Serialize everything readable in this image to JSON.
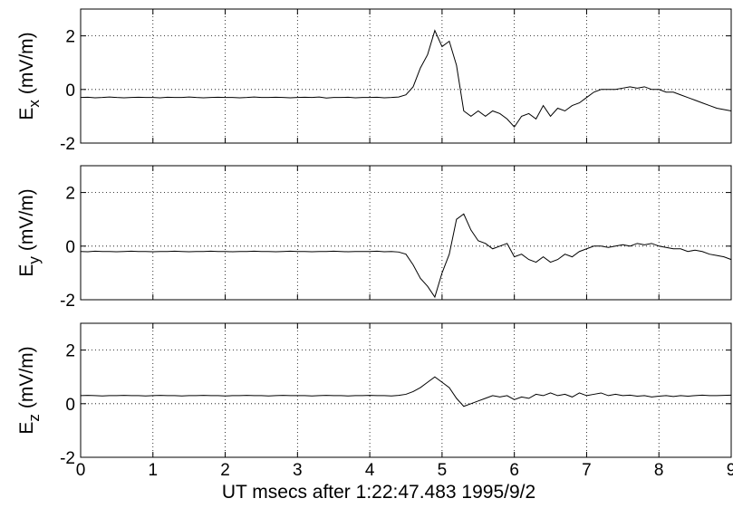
{
  "chart_data": [
    {
      "type": "line",
      "ylabel": {
        "main": "E",
        "sub": "x",
        "unit": "(mV/m)"
      },
      "xlim": [
        0,
        9
      ],
      "xticks": [
        0,
        1,
        2,
        3,
        4,
        5,
        6,
        7,
        8,
        9
      ],
      "ylim": [
        -2,
        3
      ],
      "yticks": [
        -2,
        0,
        2
      ],
      "grid": true,
      "x": [
        0,
        0.1,
        0.2,
        0.3,
        0.4,
        0.5,
        0.6,
        0.7,
        0.8,
        0.9,
        1,
        1.1,
        1.2,
        1.3,
        1.4,
        1.5,
        1.6,
        1.7,
        1.8,
        1.9,
        2,
        2.1,
        2.2,
        2.3,
        2.4,
        2.5,
        2.6,
        2.7,
        2.8,
        2.9,
        3,
        3.1,
        3.2,
        3.3,
        3.4,
        3.5,
        3.6,
        3.7,
        3.8,
        3.9,
        4,
        4.1,
        4.2,
        4.3,
        4.4,
        4.5,
        4.6,
        4.7,
        4.8,
        4.9,
        5,
        5.1,
        5.2,
        5.3,
        5.4,
        5.5,
        5.6,
        5.7,
        5.8,
        5.9,
        6,
        6.1,
        6.2,
        6.3,
        6.4,
        6.5,
        6.6,
        6.7,
        6.8,
        6.9,
        7,
        7.1,
        7.2,
        7.3,
        7.4,
        7.5,
        7.6,
        7.7,
        7.8,
        7.9,
        8,
        8.1,
        8.2,
        8.3,
        8.4,
        8.5,
        8.6,
        8.7,
        8.8,
        8.9,
        9
      ],
      "series": [
        {
          "color": "#000000",
          "values": [
            -0.3,
            -0.29,
            -0.31,
            -0.3,
            -0.28,
            -0.3,
            -0.31,
            -0.3,
            -0.29,
            -0.3,
            -0.3,
            -0.31,
            -0.29,
            -0.3,
            -0.3,
            -0.28,
            -0.3,
            -0.31,
            -0.3,
            -0.29,
            -0.3,
            -0.3,
            -0.31,
            -0.3,
            -0.28,
            -0.3,
            -0.3,
            -0.29,
            -0.3,
            -0.31,
            -0.3,
            -0.29,
            -0.3,
            -0.28,
            -0.32,
            -0.3,
            -0.3,
            -0.29,
            -0.31,
            -0.3,
            -0.3,
            -0.29,
            -0.31,
            -0.3,
            -0.28,
            -0.2,
            0.1,
            0.8,
            1.3,
            2.2,
            1.6,
            1.8,
            0.9,
            -0.8,
            -1.0,
            -0.8,
            -1.0,
            -0.8,
            -0.9,
            -1.1,
            -1.4,
            -1.0,
            -0.9,
            -1.1,
            -0.6,
            -1.0,
            -0.7,
            -0.8,
            -0.6,
            -0.5,
            -0.3,
            -0.1,
            0.0,
            0.0,
            0.0,
            0.05,
            0.1,
            0.05,
            0.1,
            0.0,
            0.0,
            -0.1,
            -0.1,
            -0.2,
            -0.3,
            -0.4,
            -0.5,
            -0.6,
            -0.7,
            -0.75,
            -0.8
          ]
        }
      ]
    },
    {
      "type": "line",
      "ylabel": {
        "main": "E",
        "sub": "y",
        "unit": "(mV/m)"
      },
      "xlim": [
        0,
        9
      ],
      "xticks": [
        0,
        1,
        2,
        3,
        4,
        5,
        6,
        7,
        8,
        9
      ],
      "ylim": [
        -2,
        3
      ],
      "yticks": [
        -2,
        0,
        2
      ],
      "grid": true,
      "x": [
        0,
        0.1,
        0.2,
        0.3,
        0.4,
        0.5,
        0.6,
        0.7,
        0.8,
        0.9,
        1,
        1.1,
        1.2,
        1.3,
        1.4,
        1.5,
        1.6,
        1.7,
        1.8,
        1.9,
        2,
        2.1,
        2.2,
        2.3,
        2.4,
        2.5,
        2.6,
        2.7,
        2.8,
        2.9,
        3,
        3.1,
        3.2,
        3.3,
        3.4,
        3.5,
        3.6,
        3.7,
        3.8,
        3.9,
        4,
        4.1,
        4.2,
        4.3,
        4.4,
        4.5,
        4.6,
        4.7,
        4.8,
        4.9,
        5,
        5.1,
        5.2,
        5.3,
        5.4,
        5.5,
        5.6,
        5.7,
        5.8,
        5.9,
        6,
        6.1,
        6.2,
        6.3,
        6.4,
        6.5,
        6.6,
        6.7,
        6.8,
        6.9,
        7,
        7.1,
        7.2,
        7.3,
        7.4,
        7.5,
        7.6,
        7.7,
        7.8,
        7.9,
        8,
        8.1,
        8.2,
        8.3,
        8.4,
        8.5,
        8.6,
        8.7,
        8.8,
        8.9,
        9
      ],
      "series": [
        {
          "color": "#000000",
          "values": [
            -0.2,
            -0.21,
            -0.19,
            -0.2,
            -0.2,
            -0.21,
            -0.2,
            -0.19,
            -0.2,
            -0.2,
            -0.21,
            -0.2,
            -0.2,
            -0.19,
            -0.2,
            -0.21,
            -0.2,
            -0.2,
            -0.19,
            -0.2,
            -0.2,
            -0.21,
            -0.2,
            -0.2,
            -0.19,
            -0.2,
            -0.2,
            -0.21,
            -0.2,
            -0.19,
            -0.2,
            -0.2,
            -0.21,
            -0.2,
            -0.2,
            -0.19,
            -0.2,
            -0.21,
            -0.2,
            -0.2,
            -0.2,
            -0.19,
            -0.21,
            -0.2,
            -0.22,
            -0.3,
            -0.7,
            -1.2,
            -1.5,
            -1.9,
            -1.0,
            -0.3,
            1.0,
            1.2,
            0.6,
            0.2,
            0.1,
            -0.1,
            0.0,
            0.1,
            -0.4,
            -0.3,
            -0.5,
            -0.6,
            -0.4,
            -0.6,
            -0.5,
            -0.3,
            -0.4,
            -0.2,
            -0.1,
            0.0,
            0.0,
            -0.05,
            0.0,
            0.05,
            0.0,
            0.1,
            0.05,
            0.1,
            0.0,
            -0.05,
            -0.1,
            -0.1,
            -0.2,
            -0.15,
            -0.2,
            -0.3,
            -0.35,
            -0.4,
            -0.5
          ]
        }
      ]
    },
    {
      "type": "line",
      "ylabel": {
        "main": "E",
        "sub": "z",
        "unit": "(mV/m)"
      },
      "xlabel": "UT msecs after 1:22:47.483 1995/9/2",
      "xlim": [
        0,
        9
      ],
      "xticks": [
        0,
        1,
        2,
        3,
        4,
        5,
        6,
        7,
        8,
        9
      ],
      "ylim": [
        -2,
        3
      ],
      "yticks": [
        -2,
        0,
        2
      ],
      "grid": true,
      "x": [
        0,
        0.1,
        0.2,
        0.3,
        0.4,
        0.5,
        0.6,
        0.7,
        0.8,
        0.9,
        1,
        1.1,
        1.2,
        1.3,
        1.4,
        1.5,
        1.6,
        1.7,
        1.8,
        1.9,
        2,
        2.1,
        2.2,
        2.3,
        2.4,
        2.5,
        2.6,
        2.7,
        2.8,
        2.9,
        3,
        3.1,
        3.2,
        3.3,
        3.4,
        3.5,
        3.6,
        3.7,
        3.8,
        3.9,
        4,
        4.1,
        4.2,
        4.3,
        4.4,
        4.5,
        4.6,
        4.7,
        4.8,
        4.9,
        5,
        5.1,
        5.2,
        5.3,
        5.4,
        5.5,
        5.6,
        5.7,
        5.8,
        5.9,
        6,
        6.1,
        6.2,
        6.3,
        6.4,
        6.5,
        6.6,
        6.7,
        6.8,
        6.9,
        7,
        7.1,
        7.2,
        7.3,
        7.4,
        7.5,
        7.6,
        7.7,
        7.8,
        7.9,
        8,
        8.1,
        8.2,
        8.3,
        8.4,
        8.5,
        8.6,
        8.7,
        8.8,
        8.9,
        9
      ],
      "series": [
        {
          "color": "#000000",
          "values": [
            0.3,
            0.31,
            0.3,
            0.29,
            0.3,
            0.3,
            0.31,
            0.3,
            0.3,
            0.29,
            0.3,
            0.31,
            0.3,
            0.3,
            0.29,
            0.3,
            0.3,
            0.31,
            0.3,
            0.3,
            0.29,
            0.3,
            0.3,
            0.31,
            0.3,
            0.3,
            0.29,
            0.3,
            0.31,
            0.3,
            0.3,
            0.3,
            0.29,
            0.3,
            0.31,
            0.3,
            0.3,
            0.29,
            0.3,
            0.3,
            0.31,
            0.3,
            0.3,
            0.29,
            0.31,
            0.35,
            0.45,
            0.6,
            0.8,
            1.0,
            0.8,
            0.6,
            0.2,
            -0.1,
            0.0,
            0.1,
            0.2,
            0.3,
            0.25,
            0.3,
            0.15,
            0.25,
            0.2,
            0.35,
            0.3,
            0.4,
            0.3,
            0.35,
            0.25,
            0.4,
            0.3,
            0.35,
            0.4,
            0.3,
            0.35,
            0.3,
            0.32,
            0.28,
            0.3,
            0.25,
            0.28,
            0.3,
            0.27,
            0.3,
            0.28,
            0.3,
            0.32,
            0.3,
            0.3,
            0.31,
            0.32
          ]
        }
      ]
    }
  ]
}
